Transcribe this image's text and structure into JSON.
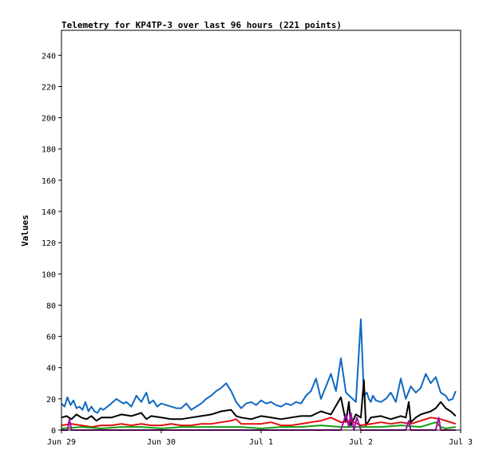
{
  "chart_data": {
    "type": "line",
    "title": "Telemetry for KP4TP-3 over last 96 hours (221 points)",
    "xlabel": "",
    "ylabel": "Values",
    "ylim": [
      0,
      256
    ],
    "xlim": [
      0,
      4
    ],
    "yticks": [
      0,
      20,
      40,
      60,
      80,
      100,
      120,
      140,
      160,
      180,
      200,
      220,
      240
    ],
    "xticks": [
      {
        "value": 0,
        "label": "Jun 29"
      },
      {
        "value": 1,
        "label": "Jun 30"
      },
      {
        "value": 2,
        "label": "Jul 1"
      },
      {
        "value": 3,
        "label": "Jul 2"
      },
      {
        "value": 4,
        "label": "Jul 3"
      }
    ],
    "grid": false,
    "legend": "none",
    "series": [
      {
        "color": "#1068c0",
        "x": [
          0.0,
          0.03,
          0.06,
          0.09,
          0.12,
          0.15,
          0.18,
          0.21,
          0.24,
          0.27,
          0.3,
          0.33,
          0.36,
          0.39,
          0.42,
          0.48,
          0.55,
          0.62,
          0.65,
          0.7,
          0.75,
          0.8,
          0.85,
          0.88,
          0.92,
          0.96,
          1.0,
          1.05,
          1.1,
          1.15,
          1.2,
          1.25,
          1.3,
          1.35,
          1.4,
          1.45,
          1.5,
          1.55,
          1.6,
          1.65,
          1.7,
          1.75,
          1.8,
          1.85,
          1.9,
          1.95,
          2.0,
          2.05,
          2.1,
          2.15,
          2.2,
          2.25,
          2.3,
          2.35,
          2.4,
          2.45,
          2.5,
          2.55,
          2.6,
          2.65,
          2.7,
          2.75,
          2.8,
          2.85,
          2.9,
          2.95,
          3.0,
          3.03,
          3.06,
          3.08,
          3.1,
          3.12,
          3.15,
          3.2,
          3.25,
          3.3,
          3.35,
          3.4,
          3.45,
          3.5,
          3.55,
          3.6,
          3.65,
          3.7,
          3.75,
          3.8,
          3.85,
          3.88,
          3.92,
          3.95
        ],
        "values": [
          17,
          15,
          21,
          16,
          19,
          14,
          15,
          13,
          18,
          12,
          15,
          12,
          11,
          14,
          13,
          16,
          20,
          17,
          18,
          15,
          22,
          18,
          24,
          17,
          19,
          15,
          17,
          16,
          15,
          14,
          14,
          17,
          13,
          15,
          17,
          20,
          22,
          25,
          27,
          30,
          25,
          18,
          14,
          17,
          18,
          16,
          19,
          17,
          18,
          16,
          15,
          17,
          16,
          18,
          17,
          22,
          25,
          33,
          20,
          28,
          36,
          25,
          46,
          24,
          21,
          18,
          71,
          22,
          24,
          20,
          18,
          22,
          19,
          18,
          20,
          24,
          18,
          33,
          20,
          28,
          24,
          27,
          36,
          30,
          34,
          24,
          22,
          19,
          20,
          25
        ]
      },
      {
        "color": "#000000",
        "x": [
          0.0,
          0.05,
          0.1,
          0.15,
          0.2,
          0.25,
          0.3,
          0.35,
          0.4,
          0.5,
          0.6,
          0.7,
          0.8,
          0.85,
          0.9,
          1.0,
          1.1,
          1.2,
          1.3,
          1.4,
          1.5,
          1.6,
          1.7,
          1.75,
          1.8,
          1.9,
          2.0,
          2.1,
          2.2,
          2.3,
          2.4,
          2.5,
          2.6,
          2.7,
          2.8,
          2.85,
          2.88,
          2.9,
          2.95,
          3.0,
          3.03,
          3.05,
          3.1,
          3.2,
          3.3,
          3.4,
          3.45,
          3.48,
          3.5,
          3.55,
          3.6,
          3.7,
          3.75,
          3.8,
          3.85,
          3.9,
          3.95
        ],
        "values": [
          8,
          9,
          7,
          10,
          8,
          7,
          9,
          6,
          8,
          8,
          10,
          9,
          11,
          7,
          9,
          8,
          7,
          7,
          8,
          9,
          10,
          12,
          13,
          9,
          8,
          7,
          9,
          8,
          7,
          8,
          9,
          9,
          12,
          10,
          21,
          5,
          18,
          3,
          10,
          8,
          32,
          3,
          8,
          9,
          7,
          9,
          8,
          18,
          5,
          8,
          10,
          12,
          14,
          18,
          14,
          12,
          9
        ]
      },
      {
        "color": "#e01010",
        "x": [
          0.0,
          0.1,
          0.2,
          0.3,
          0.4,
          0.5,
          0.6,
          0.7,
          0.8,
          0.9,
          1.0,
          1.1,
          1.2,
          1.3,
          1.4,
          1.5,
          1.6,
          1.7,
          1.75,
          1.8,
          1.9,
          2.0,
          2.1,
          2.2,
          2.3,
          2.4,
          2.5,
          2.6,
          2.7,
          2.8,
          2.9,
          3.0,
          3.1,
          3.2,
          3.3,
          3.4,
          3.5,
          3.6,
          3.7,
          3.8,
          3.9,
          3.95
        ],
        "values": [
          3,
          4,
          3,
          2,
          3,
          3,
          4,
          3,
          4,
          3,
          3,
          4,
          3,
          3,
          4,
          4,
          5,
          6,
          7,
          4,
          4,
          4,
          5,
          3,
          3,
          4,
          5,
          6,
          8,
          5,
          6,
          3,
          4,
          5,
          4,
          5,
          4,
          6,
          8,
          7,
          5,
          4
        ]
      },
      {
        "color": "#10a010",
        "x": [
          0.0,
          0.2,
          0.4,
          0.6,
          0.8,
          1.0,
          1.2,
          1.4,
          1.6,
          1.8,
          2.0,
          2.2,
          2.4,
          2.6,
          2.8,
          3.0,
          3.2,
          3.4,
          3.6,
          3.75,
          3.8,
          3.85,
          3.95
        ],
        "values": [
          1,
          2,
          1,
          2,
          2,
          1,
          2,
          2,
          2,
          2,
          1,
          2,
          2,
          3,
          2,
          2,
          2,
          3,
          2,
          5,
          2,
          1,
          2
        ]
      },
      {
        "color": "#a010a0",
        "x": [
          0.0,
          0.06,
          0.08,
          0.1,
          1.0,
          2.0,
          2.8,
          2.85,
          2.88,
          2.9,
          2.93,
          2.96,
          3.0,
          3.4,
          3.45,
          3.48,
          3.5,
          3.7,
          3.75,
          3.78,
          3.8,
          3.95
        ],
        "values": [
          0,
          0,
          7,
          0,
          0,
          0,
          0,
          10,
          2,
          11,
          0,
          8,
          0,
          0,
          0,
          6,
          0,
          0,
          0,
          8,
          0,
          0
        ]
      }
    ]
  }
}
